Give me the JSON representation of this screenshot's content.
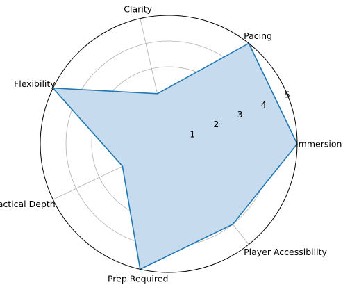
{
  "chart_data": {
    "type": "radar",
    "categories": [
      "Immersion",
      "Pacing",
      "Clarity",
      "Flexibility",
      "Tactical Depth",
      "Prep Required",
      "Player Accessibility"
    ],
    "series": [
      {
        "values": [
          5,
          5,
          2,
          5,
          2,
          5,
          4
        ]
      }
    ],
    "radial_ticks": [
      "1",
      "2",
      "3",
      "4",
      "5"
    ],
    "rlim": [
      0,
      5
    ],
    "grid": true,
    "colors": {
      "line": "#1f77b4",
      "fill": "#c6dbed",
      "grid": "#b0b0b0",
      "frame": "#000000"
    }
  }
}
